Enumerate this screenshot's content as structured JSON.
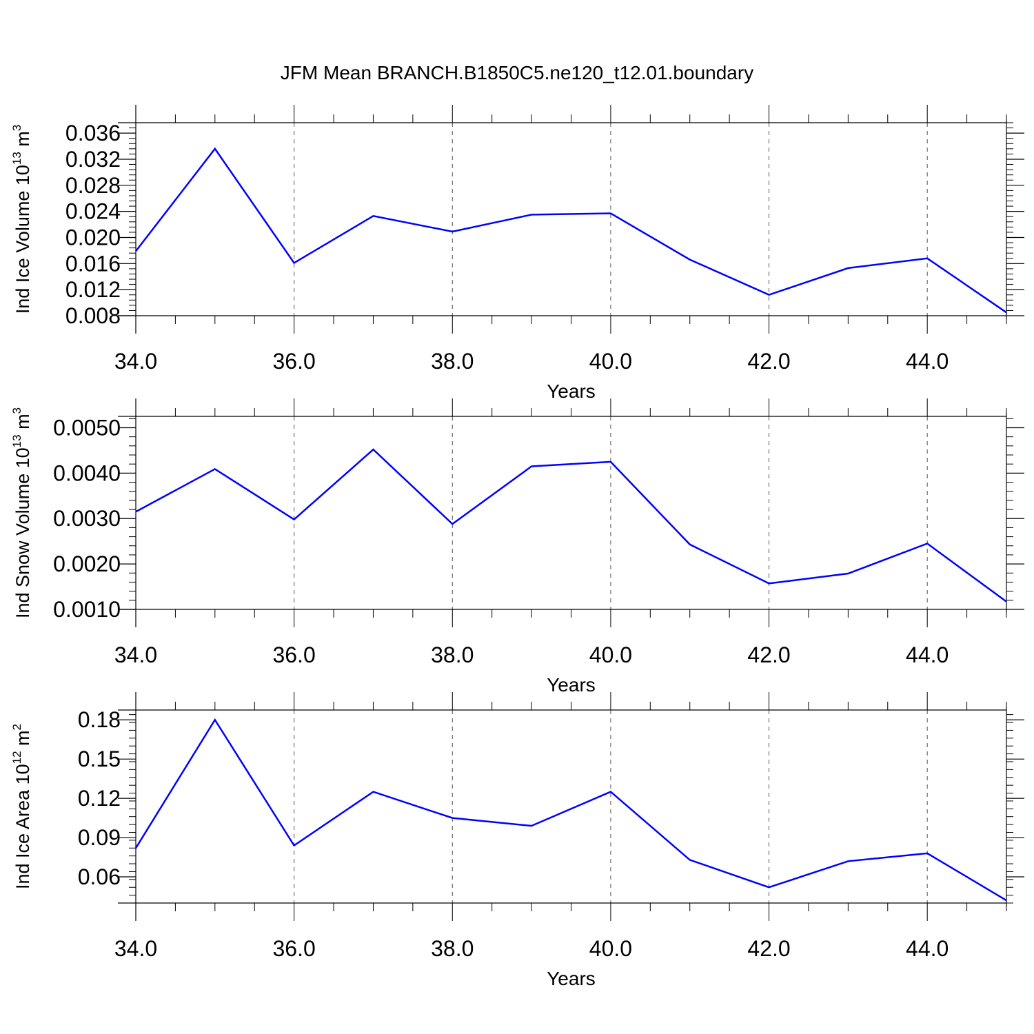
{
  "title": "JFM Mean BRANCH.B1850C5.ne120_t12.01.boundary",
  "colors": {
    "line": "#0000ff",
    "axis": "#000000",
    "grid": "#555555"
  },
  "chart_data": [
    {
      "type": "line",
      "title": "",
      "xlabel": "Years",
      "ylabel": {
        "base": "Ind Ice Volume 10",
        "exp1": "13",
        "mid": " m",
        "exp2": "3"
      },
      "xlim": [
        34,
        45
      ],
      "ylim": [
        0.008,
        0.0376
      ],
      "x_ticks": [
        34,
        36,
        38,
        40,
        42,
        44
      ],
      "x_tick_labels": [
        "34.0",
        "36.0",
        "38.0",
        "40.0",
        "42.0",
        "44.0"
      ],
      "y_ticks": [
        0.008,
        0.012,
        0.016,
        0.02,
        0.024,
        0.028,
        0.032,
        0.036
      ],
      "y_tick_labels": [
        "0.008",
        "0.012",
        "0.016",
        "0.020",
        "0.024",
        "0.028",
        "0.032",
        "0.036"
      ],
      "grid": "vertical dashed at major x ticks",
      "x": [
        34,
        35,
        36,
        37,
        38,
        39,
        40,
        41,
        42,
        43,
        44,
        45
      ],
      "series": [
        {
          "values": [
            0.0179,
            0.0336,
            0.0161,
            0.0233,
            0.0209,
            0.0235,
            0.0237,
            0.0166,
            0.0112,
            0.0153,
            0.0168,
            0.0085
          ]
        }
      ]
    },
    {
      "type": "line",
      "title": "",
      "xlabel": "Years",
      "ylabel": {
        "base": "Ind Snow Volume 10",
        "exp1": "13",
        "mid": " m",
        "exp2": "3"
      },
      "xlim": [
        34,
        45
      ],
      "ylim": [
        0.001,
        0.00525
      ],
      "x_ticks": [
        34,
        36,
        38,
        40,
        42,
        44
      ],
      "x_tick_labels": [
        "34.0",
        "36.0",
        "38.0",
        "40.0",
        "42.0",
        "44.0"
      ],
      "y_ticks": [
        0.001,
        0.002,
        0.003,
        0.004,
        0.005
      ],
      "y_tick_labels": [
        "0.0010",
        "0.0020",
        "0.0030",
        "0.0040",
        "0.0050"
      ],
      "grid": "vertical dashed at major x ticks",
      "x": [
        34,
        35,
        36,
        37,
        38,
        39,
        40,
        41,
        42,
        43,
        44,
        45
      ],
      "series": [
        {
          "values": [
            0.00315,
            0.00409,
            0.00298,
            0.00452,
            0.00288,
            0.00415,
            0.00425,
            0.00243,
            0.00157,
            0.00179,
            0.00245,
            0.00117
          ]
        }
      ]
    },
    {
      "type": "line",
      "title": "",
      "xlabel": "Years",
      "ylabel": {
        "base": "Ind Ice Area 10",
        "exp1": "12",
        "mid": " m",
        "exp2": "2"
      },
      "xlim": [
        34,
        45
      ],
      "ylim": [
        0.04,
        0.1875
      ],
      "x_ticks": [
        34,
        36,
        38,
        40,
        42,
        44
      ],
      "x_tick_labels": [
        "34.0",
        "36.0",
        "38.0",
        "40.0",
        "42.0",
        "44.0"
      ],
      "y_ticks": [
        0.06,
        0.09,
        0.12,
        0.15,
        0.18
      ],
      "y_tick_labels": [
        "0.06",
        "0.09",
        "0.12",
        "0.15",
        "0.18"
      ],
      "grid": "vertical dashed at major x ticks",
      "x": [
        34,
        35,
        36,
        37,
        38,
        39,
        40,
        41,
        42,
        43,
        44,
        45
      ],
      "series": [
        {
          "values": [
            0.082,
            0.18,
            0.084,
            0.125,
            0.105,
            0.099,
            0.125,
            0.073,
            0.052,
            0.072,
            0.078,
            0.042
          ]
        }
      ]
    }
  ]
}
